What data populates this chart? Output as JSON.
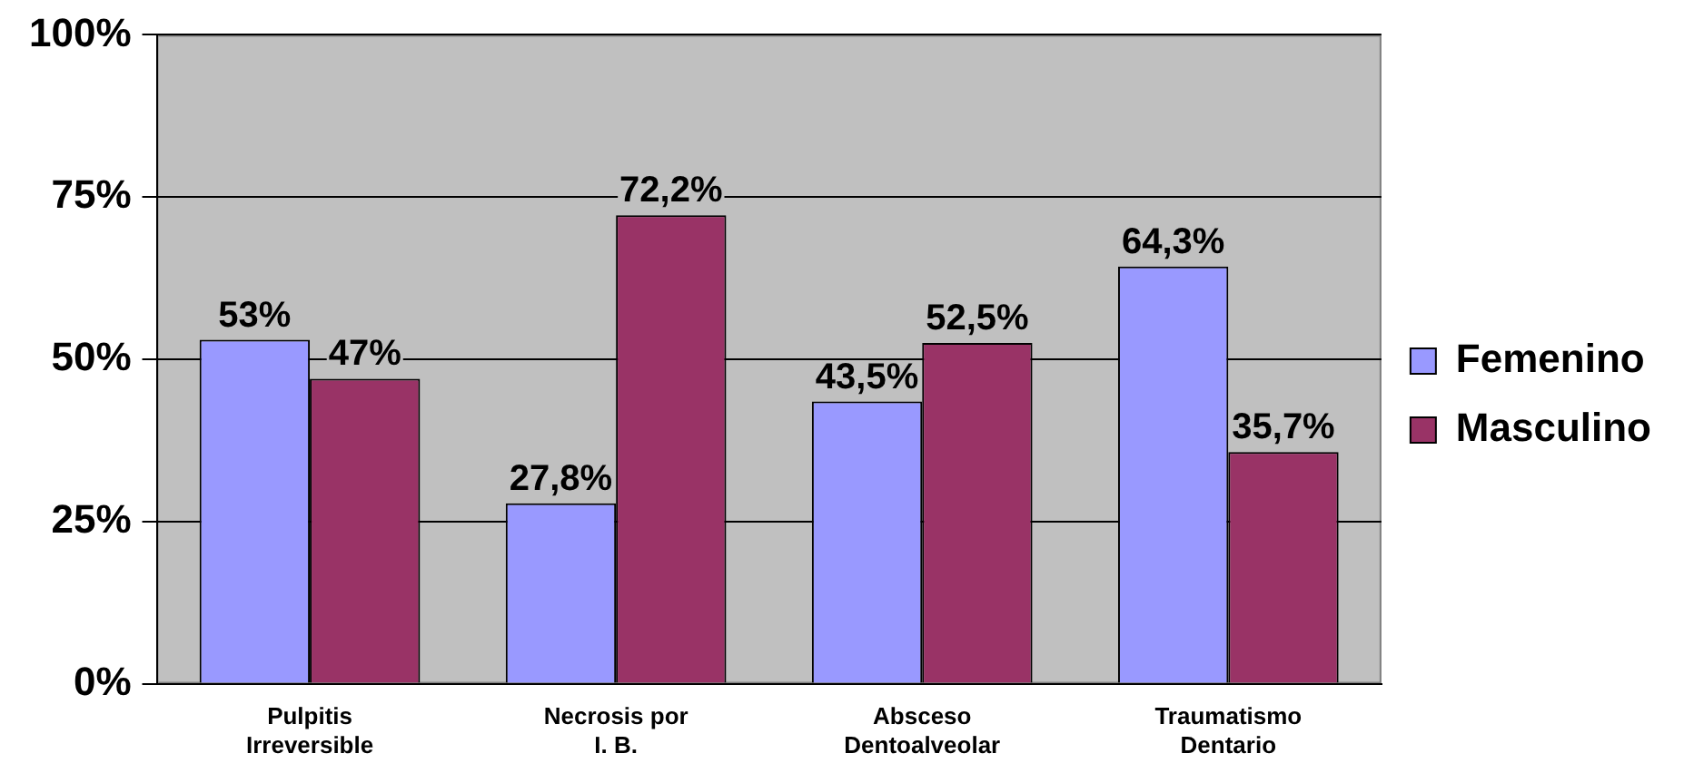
{
  "chart_data": {
    "type": "bar",
    "categories": [
      "Pulpitis Irreversible",
      "Necrosis por I. B.",
      "Absceso Dentoalveolar",
      "Traumatismo Dentario"
    ],
    "series": [
      {
        "name": "Femenino",
        "color": "#9999ff",
        "values": [
          53,
          27.8,
          43.5,
          64.3
        ],
        "value_labels": [
          "53%",
          "27,8%",
          "43,5%",
          "64,3%"
        ]
      },
      {
        "name": "Masculino",
        "color": "#993366",
        "values": [
          47,
          72.2,
          52.5,
          35.7
        ],
        "value_labels": [
          "47%",
          "72,2%",
          "52,5%",
          "35,7%"
        ]
      }
    ],
    "ylim": [
      0,
      100
    ],
    "yticks": [
      {
        "value": 0,
        "label": "0%"
      },
      {
        "value": 25,
        "label": "25%"
      },
      {
        "value": 50,
        "label": "50%"
      },
      {
        "value": 75,
        "label": "75%"
      },
      {
        "value": 100,
        "label": "100%"
      }
    ],
    "grid": "y",
    "legend": "right"
  }
}
